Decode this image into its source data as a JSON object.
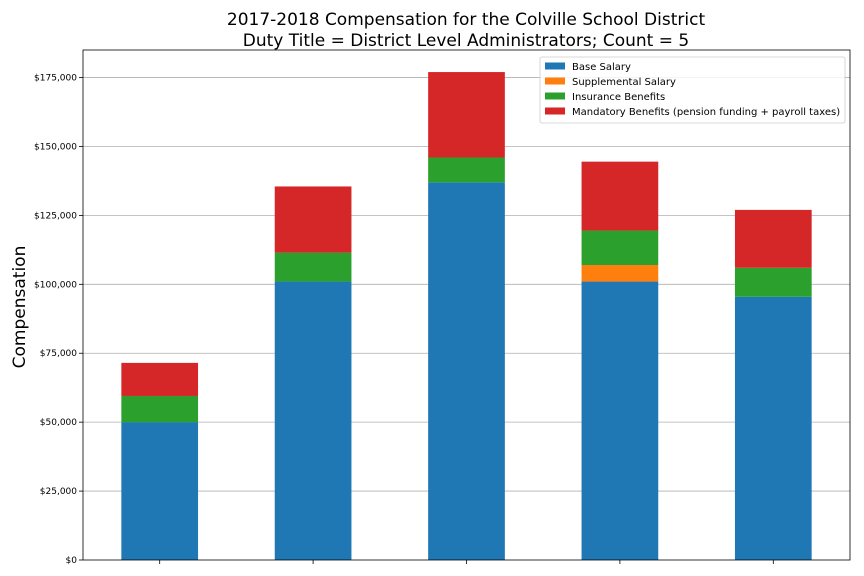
{
  "chart_data": {
    "type": "bar",
    "stacked": true,
    "title": "2017-2018 Compensation for the Colville School District",
    "subtitle": "Duty Title = District Level Administrators; Count = 5",
    "xlabel": "",
    "ylabel": "Compensation",
    "ylim": [
      0,
      185000
    ],
    "yticks": [
      0,
      25000,
      50000,
      75000,
      100000,
      125000,
      150000,
      175000
    ],
    "ytick_labels": [
      "$0",
      "$25,000",
      "$50,000",
      "$75,000",
      "$100,000",
      "$125,000",
      "$150,000",
      "$175,000"
    ],
    "categories": [
      "",
      "",
      "",
      "",
      ""
    ],
    "grid": "horizontal",
    "legend_position": "top-right",
    "series": [
      {
        "name": "Base Salary",
        "color": "#1f77b4",
        "values": [
          50000,
          101000,
          137000,
          101000,
          95500
        ]
      },
      {
        "name": "Supplemental Salary",
        "color": "#ff7f0e",
        "values": [
          0,
          0,
          0,
          6000,
          0
        ]
      },
      {
        "name": "Insurance Benefits",
        "color": "#2ca02c",
        "values": [
          9500,
          10500,
          9000,
          12500,
          10500
        ]
      },
      {
        "name": "Mandatory Benefits (pension funding + payroll taxes)",
        "color": "#d62728",
        "values": [
          12000,
          24000,
          31000,
          25000,
          21000
        ]
      }
    ]
  }
}
